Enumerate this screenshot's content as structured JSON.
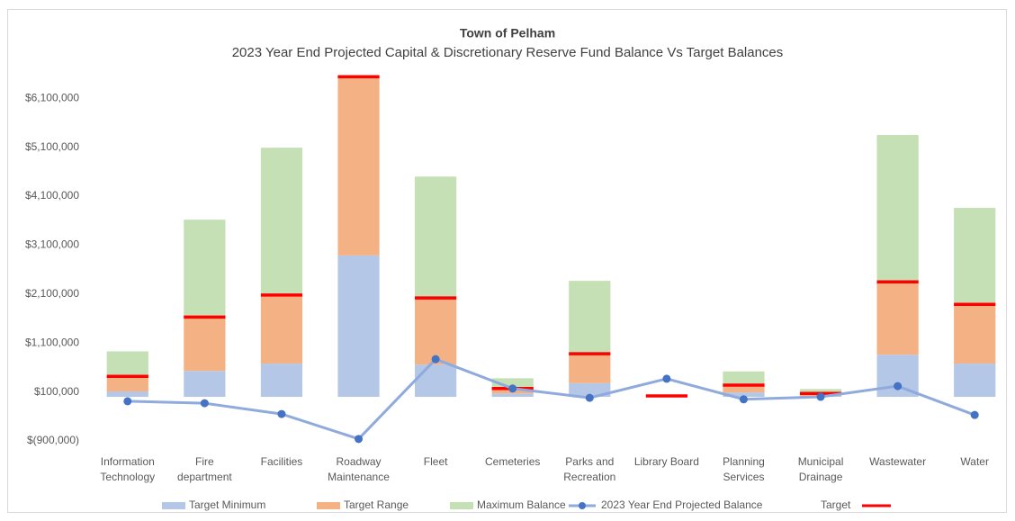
{
  "chart_data": {
    "type": "combo",
    "title": "Town of Pelham",
    "subtitle": "2023 Year End Projected Capital & Discretionary Reserve Fund Balance Vs Target Balances",
    "categories": [
      "Information\nTechnology",
      "Fire\ndepartment",
      "Facilities",
      "Roadway\nMaintenance",
      "Fleet",
      "Cemeteries",
      "Parks and\nRecreation",
      "Library Board",
      "Planning\nServices",
      "Municipal\nDrainage",
      "Wastewater",
      "Water"
    ],
    "ylim": [
      -900000,
      6600000
    ],
    "yticks": [
      {
        "value": -900000,
        "label": "$(900,000)"
      },
      {
        "value": 100000,
        "label": "$100,000"
      },
      {
        "value": 1100000,
        "label": "$1,100,000"
      },
      {
        "value": 2100000,
        "label": "$2,100,000"
      },
      {
        "value": 3100000,
        "label": "$3,100,000"
      },
      {
        "value": 4100000,
        "label": "$4,100,000"
      },
      {
        "value": 5100000,
        "label": "$5,100,000"
      },
      {
        "value": 6100000,
        "label": "$6,100,000"
      }
    ],
    "grid": false,
    "legend": "bottom",
    "series": [
      {
        "name": "Target Minimum",
        "type": "bar",
        "color": "#b4c7e7",
        "values": [
          110000,
          530000,
          680000,
          2890000,
          660000,
          70000,
          280000,
          0,
          90000,
          20000,
          860000,
          680000
        ]
      },
      {
        "name": "Target Range",
        "type": "bar",
        "color": "#f4b183",
        "values": [
          310000,
          1100000,
          1400000,
          3650000,
          1360000,
          90000,
          600000,
          0,
          150000,
          50000,
          1490000,
          1210000
        ]
      },
      {
        "name": "Maximum Balance",
        "type": "bar",
        "color": "#c5e0b4",
        "values": [
          510000,
          1990000,
          3010000,
          0,
          2480000,
          220000,
          1490000,
          0,
          280000,
          90000,
          3000000,
          1970000
        ]
      },
      {
        "name": "2023 Year End Projected Balance",
        "type": "line",
        "color": "#8faadc",
        "marker_color": "#4472c4",
        "values": [
          -90000,
          -130000,
          -350000,
          -860000,
          770000,
          170000,
          -20000,
          370000,
          -50000,
          0,
          220000,
          -370000
        ]
      },
      {
        "name": "Target",
        "type": "marker",
        "color": "#ff0000",
        "values": [
          420000,
          1630000,
          2080000,
          6540000,
          2020000,
          170000,
          880000,
          20000,
          240000,
          70000,
          2350000,
          1890000
        ]
      }
    ]
  }
}
